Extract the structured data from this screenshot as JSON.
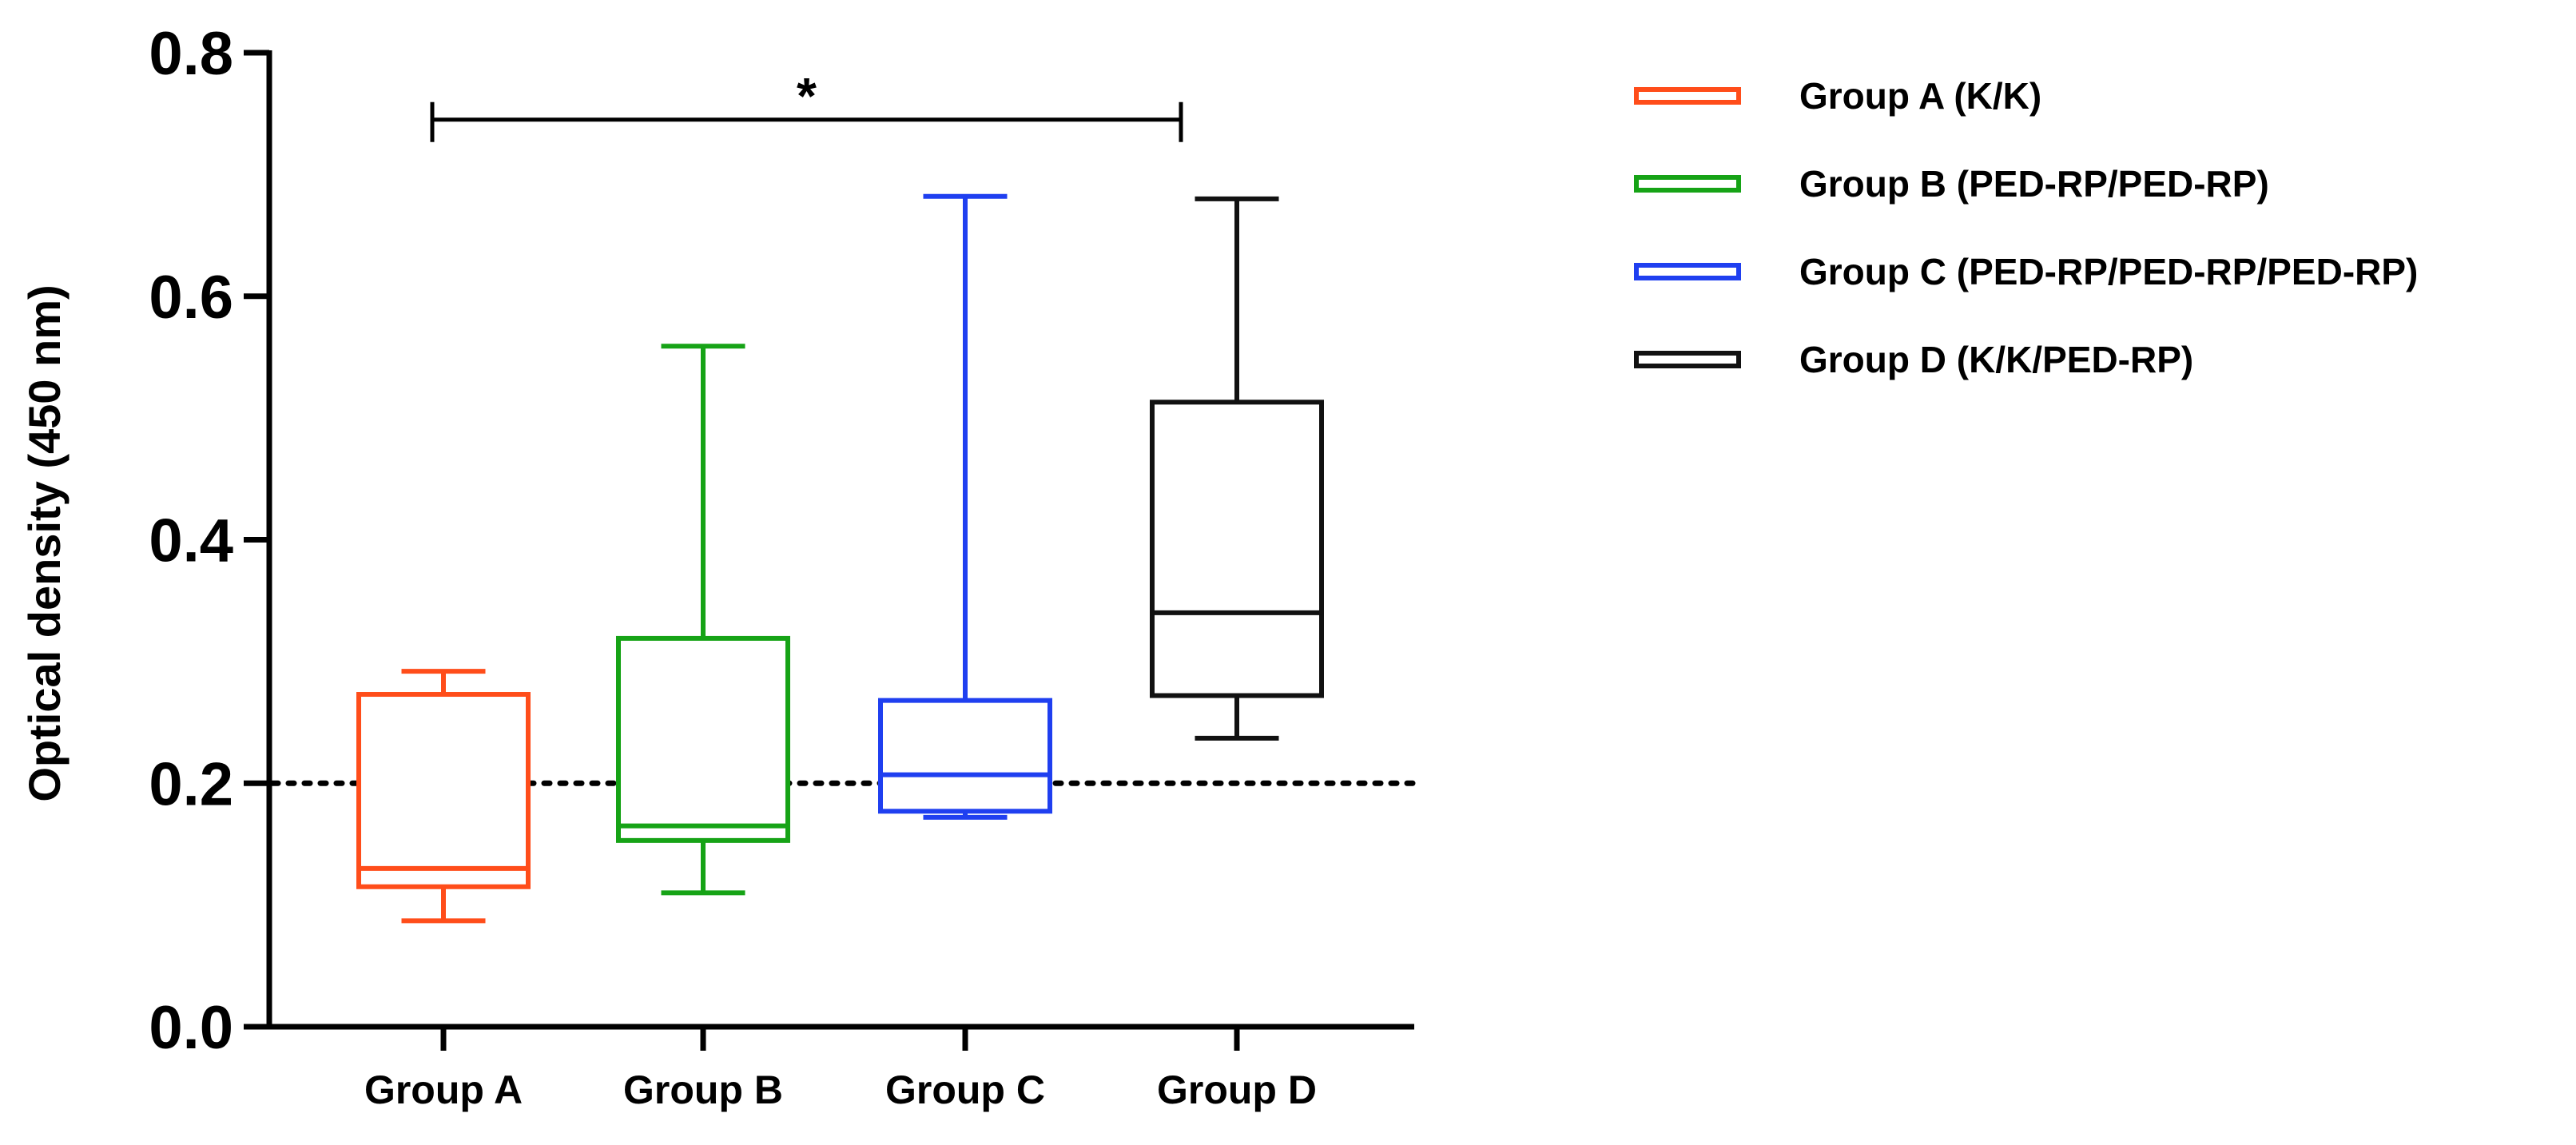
{
  "chart_data": {
    "type": "box",
    "ylabel": "Optical density (450 nm)",
    "xlabel": "",
    "ylim": [
      0,
      0.8
    ],
    "yticks": [
      "0.0",
      "0.2",
      "0.4",
      "0.6",
      "0.8"
    ],
    "yticks_values": [
      0,
      0.2,
      0.4,
      0.6,
      0.8
    ],
    "categories": [
      "Group A",
      "Group B",
      "Group C",
      "Group D"
    ],
    "series": [
      {
        "name": "Group A (K/K)",
        "category": "Group A",
        "color": "#ff4d1a",
        "min": 0.087,
        "q1": 0.115,
        "median": 0.13,
        "q3": 0.273,
        "max": 0.292
      },
      {
        "name": "Group B (PED-RP/PED-RP)",
        "category": "Group B",
        "color": "#16a316",
        "min": 0.11,
        "q1": 0.153,
        "median": 0.165,
        "q3": 0.319,
        "max": 0.559
      },
      {
        "name": "Group C (PED-RP/PED-RP/PED-RP)",
        "category": "Group C",
        "color": "#1f3ff0",
        "min": 0.172,
        "q1": 0.177,
        "median": 0.207,
        "q3": 0.268,
        "max": 0.682
      },
      {
        "name": "Group D (K/K/PED-RP)",
        "category": "Group D",
        "color": "#111111",
        "min": 0.237,
        "q1": 0.272,
        "median": 0.34,
        "q3": 0.513,
        "max": 0.68
      }
    ],
    "reference_line": {
      "value": 0.2,
      "style": "dotted"
    },
    "significance": {
      "from": "Group A",
      "to": "Group D",
      "value": 0.745,
      "label": "*"
    },
    "legend": {
      "position": "right"
    }
  }
}
